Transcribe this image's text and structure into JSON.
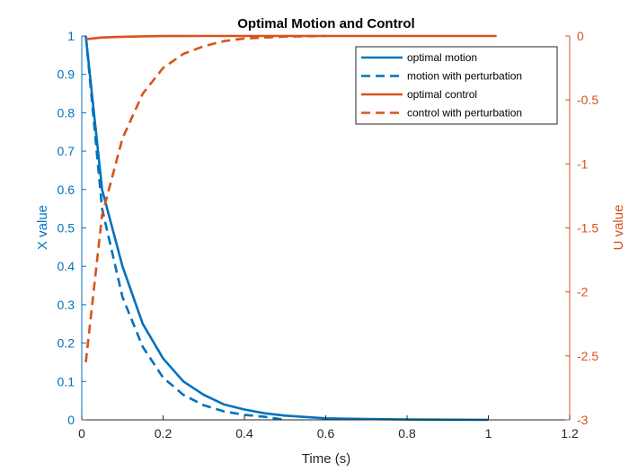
{
  "chart_data": {
    "type": "line",
    "title": "Optimal Motion and Control",
    "xlabel": "Time (s)",
    "ylabel_left": "X value",
    "ylabel_right": "U value",
    "xlim": [
      0,
      1.2
    ],
    "ylim_left": [
      0,
      1
    ],
    "ylim_right": [
      -3,
      0
    ],
    "xticks": [
      "0",
      "0.2",
      "0.4",
      "0.6",
      "0.8",
      "1",
      "1.2"
    ],
    "yticks_left": [
      "0",
      "0.1",
      "0.2",
      "0.3",
      "0.4",
      "0.5",
      "0.6",
      "0.7",
      "0.8",
      "0.9",
      "1"
    ],
    "yticks_right": [
      "-3",
      "-2.5",
      "-2",
      "-1.5",
      "-1",
      "-0.5",
      "0"
    ],
    "grid": false,
    "legend_position": "top-right",
    "colors": {
      "left_axis": "#0072BD",
      "right_axis": "#D95319"
    },
    "series": [
      {
        "name": "optimal motion",
        "axis": "left",
        "style": "solid",
        "color": "#0072BD",
        "x": [
          0.01,
          0.05,
          0.1,
          0.15,
          0.2,
          0.25,
          0.3,
          0.35,
          0.4,
          0.45,
          0.5,
          0.6,
          0.7,
          0.8,
          0.9,
          1.0
        ],
        "y": [
          1.0,
          0.6,
          0.4,
          0.25,
          0.16,
          0.1,
          0.065,
          0.04,
          0.027,
          0.017,
          0.011,
          0.004,
          0.002,
          0.001,
          0.0005,
          0.0
        ]
      },
      {
        "name": "motion with perturbation",
        "axis": "left",
        "style": "dashed",
        "color": "#0072BD",
        "x": [
          0.01,
          0.05,
          0.1,
          0.15,
          0.2,
          0.25,
          0.3,
          0.35,
          0.4,
          0.45,
          0.5
        ],
        "y": [
          1.0,
          0.55,
          0.32,
          0.19,
          0.11,
          0.065,
          0.038,
          0.022,
          0.013,
          0.008,
          0.0
        ]
      },
      {
        "name": "optimal control",
        "axis": "right",
        "style": "solid",
        "color": "#D95319",
        "x": [
          0.01,
          0.05,
          0.1,
          0.15,
          0.2,
          0.3,
          0.5,
          1.02
        ],
        "y": [
          -0.025,
          -0.012,
          -0.006,
          -0.003,
          -0.001,
          0.0,
          0.0,
          0.0
        ]
      },
      {
        "name": "control with perturbation",
        "axis": "right",
        "style": "dashed",
        "color": "#D95319",
        "x": [
          0.01,
          0.05,
          0.1,
          0.15,
          0.2,
          0.25,
          0.3,
          0.35,
          0.4,
          0.5,
          0.6
        ],
        "y": [
          -2.55,
          -1.4,
          -0.8,
          -0.45,
          -0.25,
          -0.14,
          -0.08,
          -0.04,
          -0.02,
          -0.005,
          0.0
        ]
      }
    ]
  }
}
